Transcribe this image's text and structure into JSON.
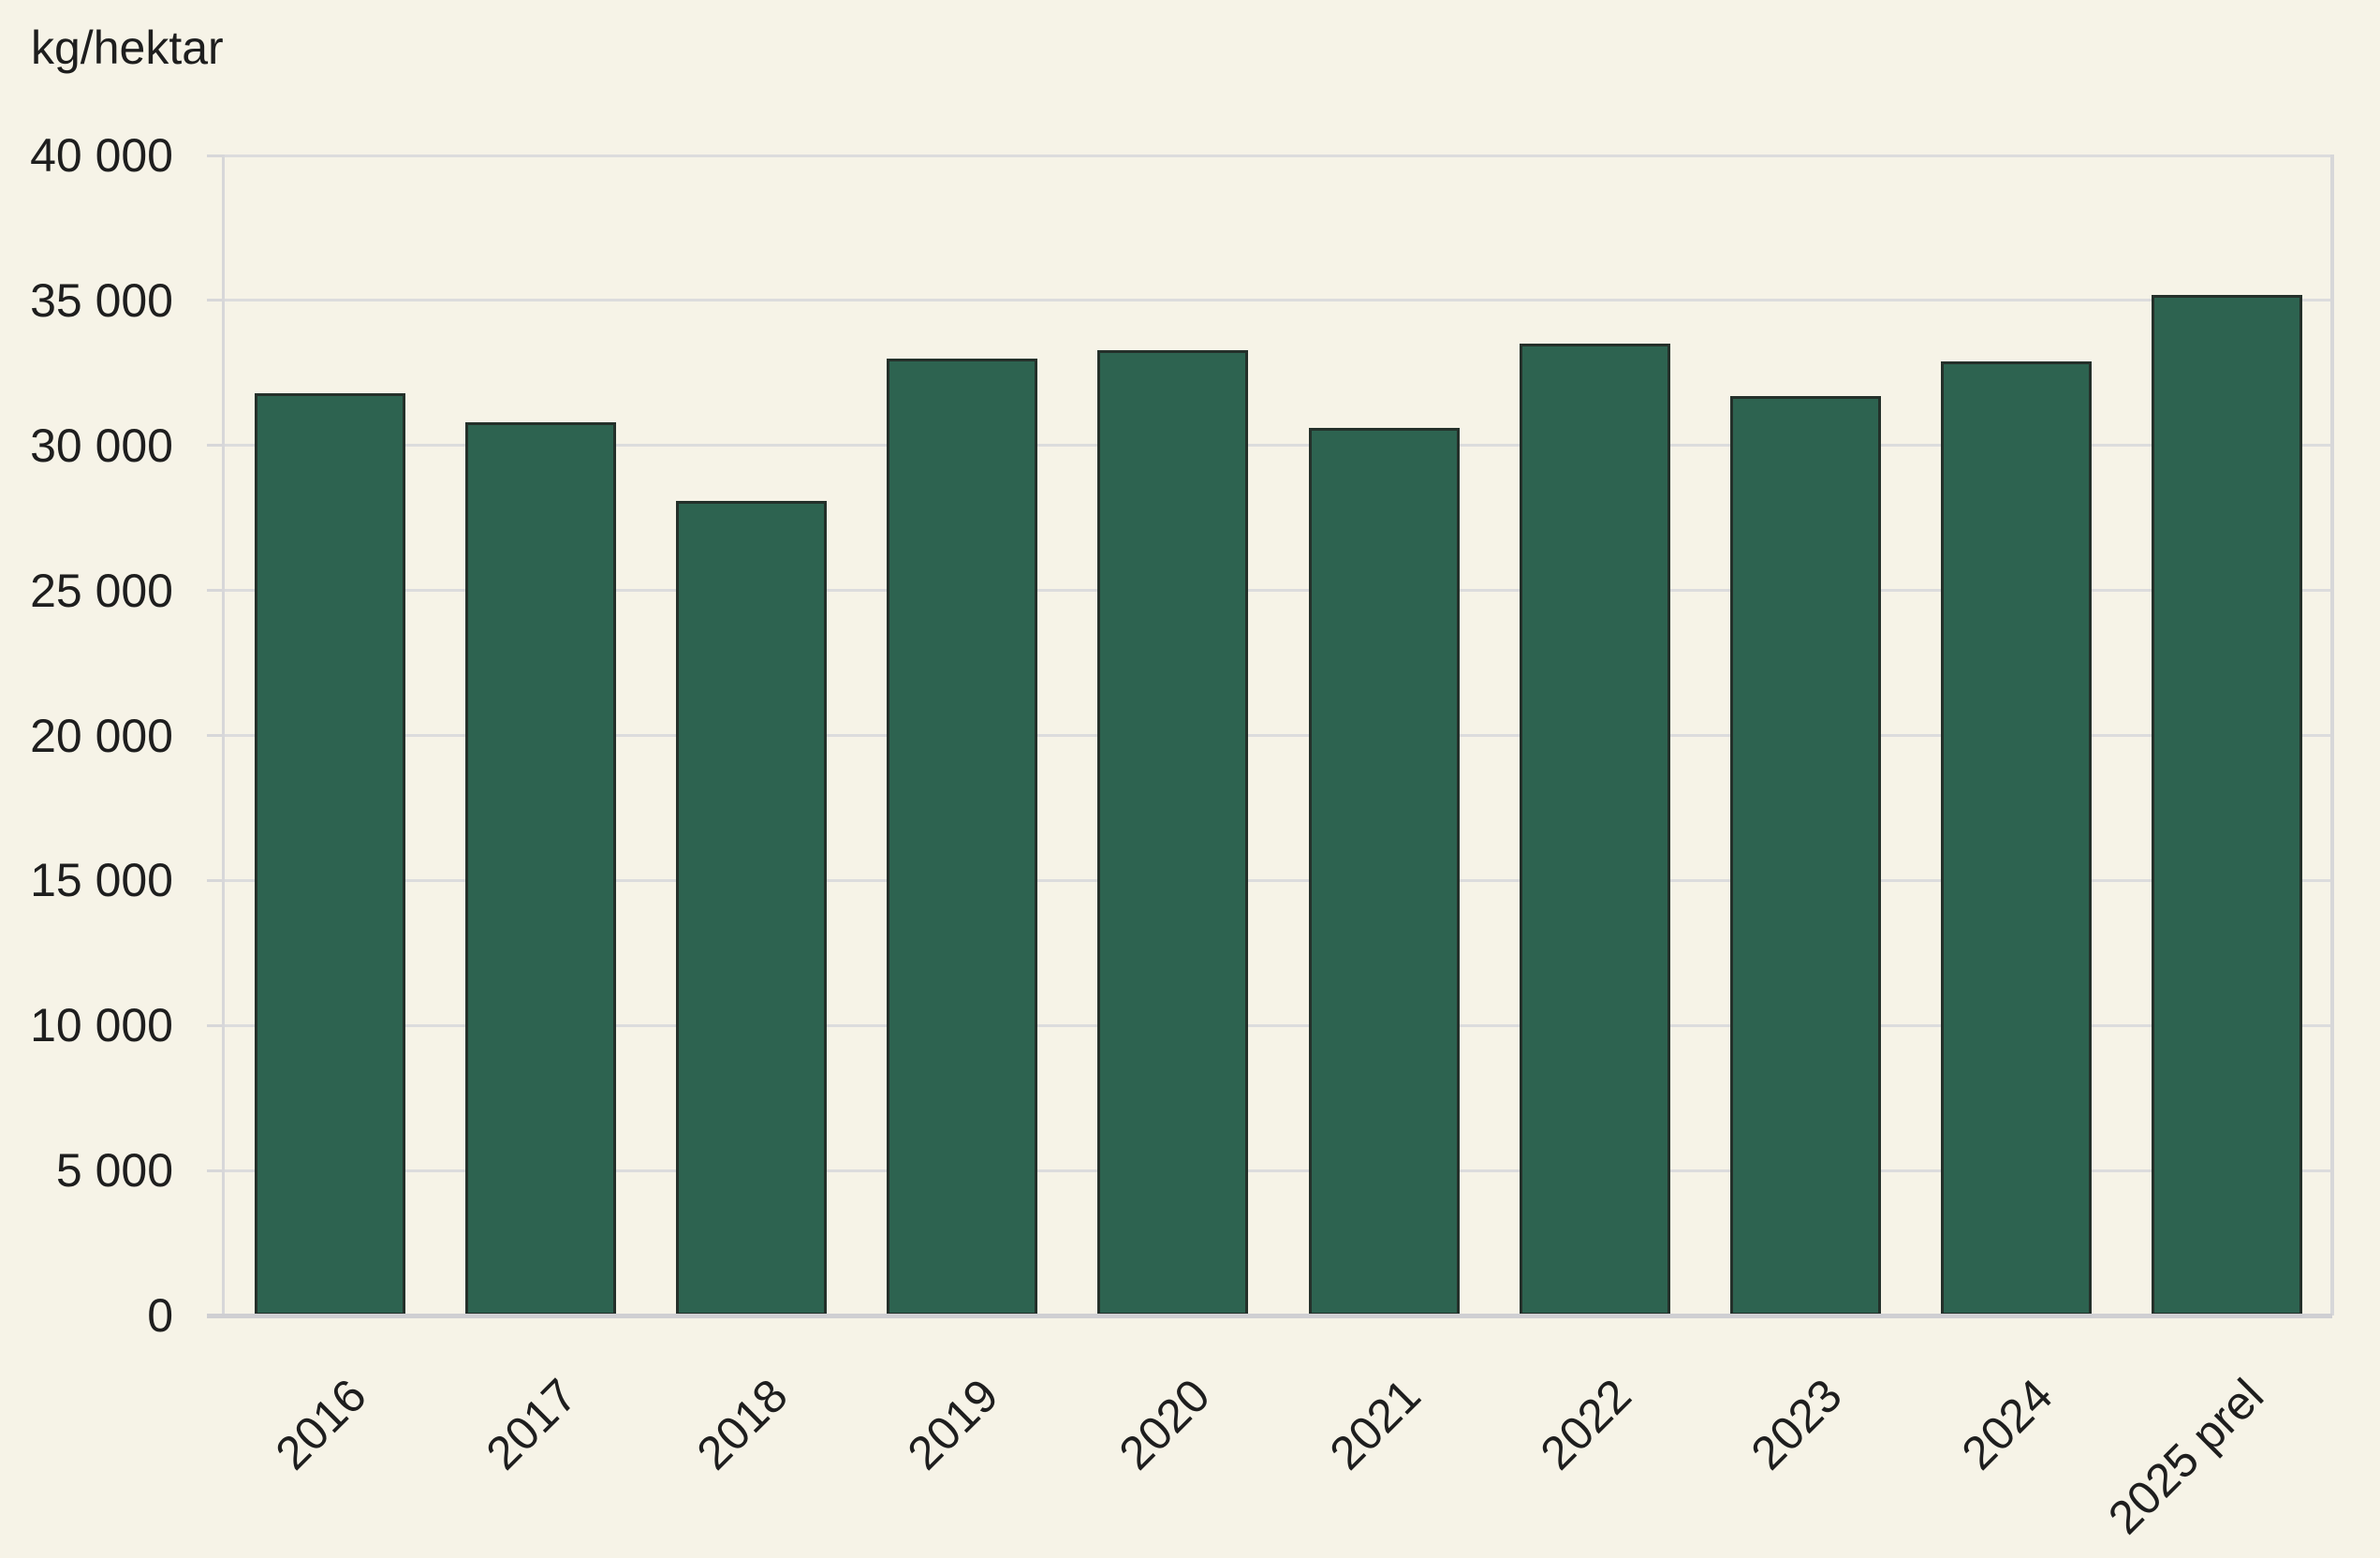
{
  "chart_data": {
    "type": "bar",
    "title": "kg/hektar",
    "ylabel": "kg/hektar",
    "xlabel": "",
    "categories": [
      "2016",
      "2017",
      "2018",
      "2019",
      "2020",
      "2021",
      "2022",
      "2023",
      "2024",
      "2025 prel"
    ],
    "values": [
      31800,
      30800,
      28100,
      33000,
      33300,
      30600,
      33500,
      31700,
      32900,
      35200
    ],
    "ylim": [
      0,
      40000
    ],
    "ytick_step": 5000,
    "yticks": [
      {
        "value": 0,
        "label": "0"
      },
      {
        "value": 5000,
        "label": "5 000"
      },
      {
        "value": 10000,
        "label": "10 000"
      },
      {
        "value": 15000,
        "label": "15 000"
      },
      {
        "value": 20000,
        "label": "20 000"
      },
      {
        "value": 25000,
        "label": "25 000"
      },
      {
        "value": 30000,
        "label": "30 000"
      },
      {
        "value": 35000,
        "label": "35 000"
      },
      {
        "value": 40000,
        "label": "40 000"
      }
    ],
    "grid": true,
    "legend": "none",
    "x_label_rotation_deg": 45,
    "colors": {
      "background": "#f6f3e7",
      "bar_fill": "#2d6350",
      "bar_border": "#24302a",
      "gridline": "#dcdcdd",
      "axis_line": "#d7d7d9",
      "baseline": "#cfcfd2",
      "text": "#1e1e1e"
    }
  }
}
